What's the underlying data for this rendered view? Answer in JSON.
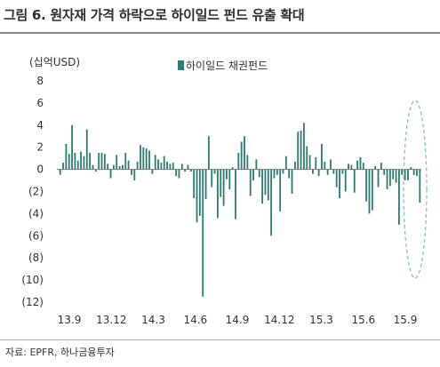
{
  "header": {
    "title": "그림 6. 원자재 가격 하락으로 하이일드 펀드 유출 확대"
  },
  "footer": {
    "source": "자료: EPFR, 하나금융투자"
  },
  "colors": {
    "bar": "#2f7d76",
    "highlight": "#7fc6c0"
  },
  "chart_data": {
    "type": "bar",
    "unit_label": "(십억USD)",
    "legend": [
      "하이일드 채권펀드"
    ],
    "ylim": [
      -12,
      8
    ],
    "yticks": [
      "8",
      "6",
      "4",
      "2",
      "0",
      "(2)",
      "(4)",
      "(6)",
      "(8)",
      "(10)",
      "(12)"
    ],
    "xticks": [
      "13.9",
      "13.12",
      "14.3",
      "14.6",
      "14.9",
      "14.12",
      "15.3",
      "15.6",
      "15.9"
    ],
    "grid": false,
    "legend_position": "top-center",
    "annotation": "dashed ellipse highlighting latest weeks",
    "series": [
      {
        "name": "하이일드 채권펀드",
        "values": [
          -0.5,
          0.6,
          2.3,
          1.4,
          4.0,
          1.5,
          0.8,
          1.6,
          1.2,
          3.6,
          1.5,
          0.4,
          -0.2,
          1.5,
          1.5,
          1.4,
          0.5,
          -0.8,
          0.4,
          1.3,
          0.3,
          0.4,
          1.5,
          0.8,
          -0.5,
          -1.0,
          0.7,
          2.2,
          2.0,
          1.9,
          1.7,
          -0.4,
          1.3,
          0.9,
          0.6,
          1.2,
          0.7,
          0.5,
          0.6,
          -0.6,
          -0.8,
          0.5,
          -0.2,
          0.4,
          -0.2,
          -2.6,
          -4.8,
          -4.2,
          -11.5,
          -2.7,
          3.0,
          -1.6,
          -0.4,
          -4.4,
          -2.5,
          -3.3,
          -0.9,
          -1.8,
          0.2,
          -4.5,
          1.5,
          2.5,
          3.0,
          1.3,
          -2.4,
          -1.0,
          0.9,
          -0.7,
          -3.1,
          -2.3,
          -2.8,
          -6.0,
          -0.8,
          -0.5,
          -3.8,
          -0.4,
          1.2,
          -0.8,
          -2.2,
          0.7,
          3.4,
          3.5,
          4.2,
          2.1,
          1.3,
          -0.4,
          1.1,
          -0.6,
          2.3,
          0.7,
          -0.5,
          0.9,
          -0.4,
          -1.6,
          -2.6,
          -0.4,
          -2.0,
          0.5,
          0.4,
          -2.1,
          0.8,
          1.1,
          0.6,
          -2.9,
          -4.0,
          -3.7,
          0.3,
          -1.6,
          0.6,
          -0.5,
          -1.8,
          -1.5,
          -0.9,
          -1.2,
          -5.0,
          -0.5,
          -1.0,
          -1.0,
          0.2,
          -0.5,
          -0.6,
          -3.0
        ]
      }
    ]
  }
}
